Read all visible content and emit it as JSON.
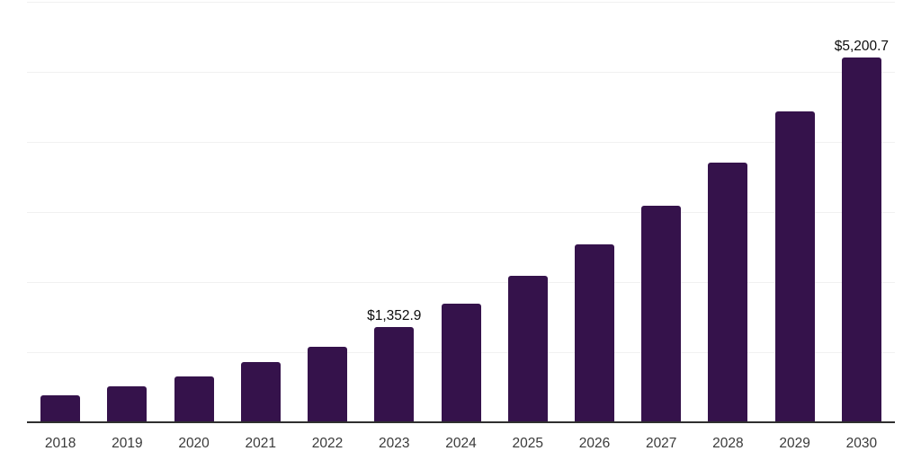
{
  "chart_data": {
    "type": "bar",
    "title": "",
    "xlabel": "",
    "ylabel": "",
    "categories": [
      "2018",
      "2019",
      "2020",
      "2021",
      "2022",
      "2023",
      "2024",
      "2025",
      "2026",
      "2027",
      "2028",
      "2029",
      "2030"
    ],
    "values": [
      385,
      513,
      654,
      859,
      1077,
      1352.9,
      1692,
      2090,
      2538,
      3090,
      3705,
      4436,
      5200.7
    ],
    "data_labels": [
      null,
      null,
      null,
      null,
      null,
      "$1,352.9",
      null,
      null,
      null,
      null,
      null,
      null,
      "$5,200.7"
    ],
    "ylim": [
      0,
      6000
    ],
    "grid_step": 1000,
    "grid": true,
    "legend": false,
    "colors": {
      "bar": "#35124b",
      "gridline": "#f1f1f1",
      "axis_line": "#2f2f2f",
      "tick_label": "#3a3a3a",
      "data_label": "#0d0d0d",
      "background": "#ffffff"
    }
  }
}
